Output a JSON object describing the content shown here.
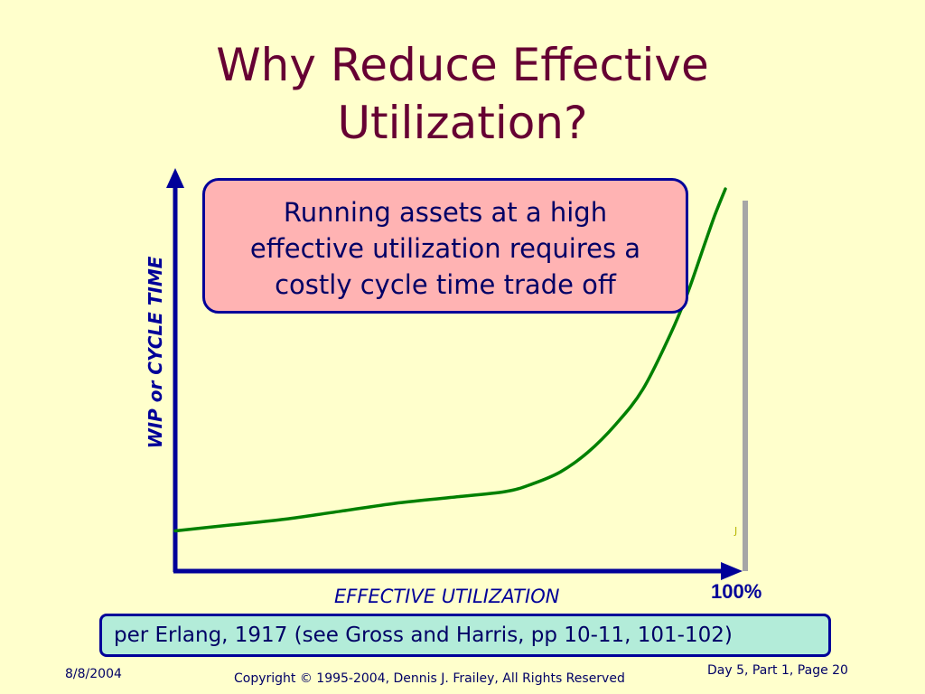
{
  "slide": {
    "title_line1": "Why Reduce Effective",
    "title_line2": "Utilization?",
    "callout_line1": "Running assets at a high",
    "callout_line2": "effective utilization requires a",
    "callout_line3": "costly cycle time trade off",
    "citation": "per Erlang, 1917 (see Gross and Harris, pp 10-11, 101-102)",
    "footer_date": "8/8/2004",
    "footer_copyright": "Copyright © 1995-2004, Dennis J. Frailey, All Rights Reserved",
    "footer_page": "Day 5, Part 1, Page 20"
  },
  "colors": {
    "background": "#ffffcc",
    "title": "#660033",
    "axis": "#000099",
    "curve": "#008000",
    "limit_line": "#a6a6a6",
    "callout_fill": "#ffb3b3",
    "citation_fill": "#b3ecd9"
  },
  "chart_data": {
    "type": "line",
    "title": "",
    "xlabel": "EFFECTIVE UTILIZATION",
    "ylabel": "WIP or CYCLE TIME",
    "x_max_label": "100%",
    "xlim": [
      0,
      1
    ],
    "ylim": [
      0,
      1
    ],
    "grid": false,
    "x_tick_labels": [],
    "y_tick_labels": [],
    "series": [
      {
        "x": [
          0,
          0.1,
          0.2,
          0.3,
          0.4,
          0.5,
          0.6,
          0.65,
          0.7,
          0.75,
          0.8,
          0.85,
          0.9,
          0.93,
          0.96,
          0.98,
          1.0
        ],
        "y": [
          0.1,
          0.115,
          0.13,
          0.15,
          0.17,
          0.185,
          0.2,
          0.22,
          0.25,
          0.3,
          0.37,
          0.46,
          0.6,
          0.7,
          0.82,
          0.9,
          0.97
        ]
      }
    ],
    "limit_line_x": 1.0,
    "marker_text": "J"
  }
}
